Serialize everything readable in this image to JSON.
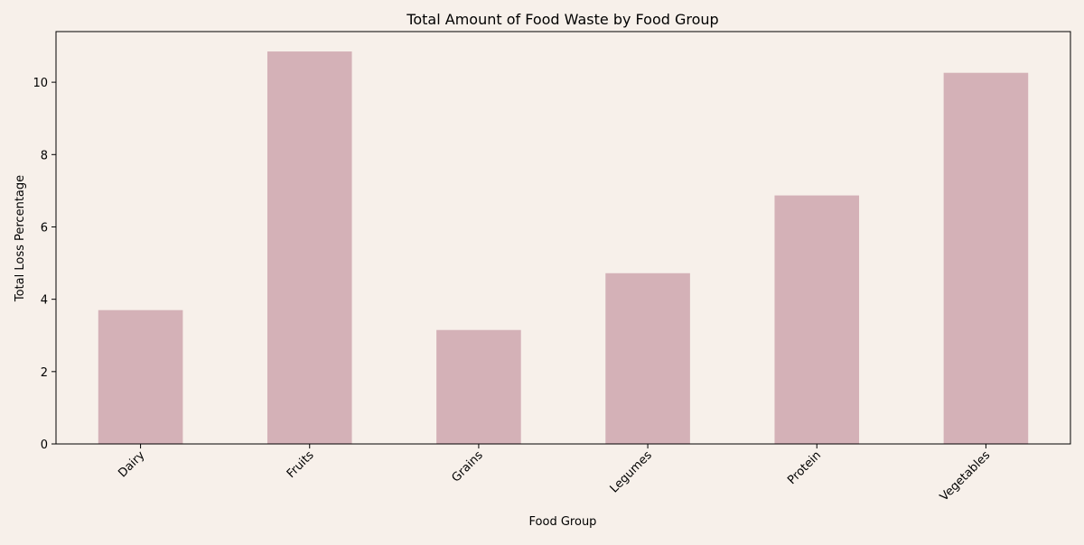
{
  "chart_data": {
    "type": "bar",
    "title": "Total Amount of Food Waste by Food Group",
    "xlabel": "Food Group",
    "ylabel": "Total Loss Percentage",
    "categories": [
      "Dairy",
      "Fruits",
      "Grains",
      "Legumes",
      "Protein",
      "Vegetables"
    ],
    "values": [
      3.7,
      10.85,
      3.15,
      4.72,
      6.87,
      10.26
    ],
    "ylim": [
      0,
      11.4
    ],
    "yticks": [
      0,
      2,
      4,
      6,
      8,
      10
    ],
    "grid": false,
    "legend": "none",
    "bar_color": "#d4b1b7",
    "background_color": "#f7f0ea",
    "xtick_rotation": 45
  }
}
